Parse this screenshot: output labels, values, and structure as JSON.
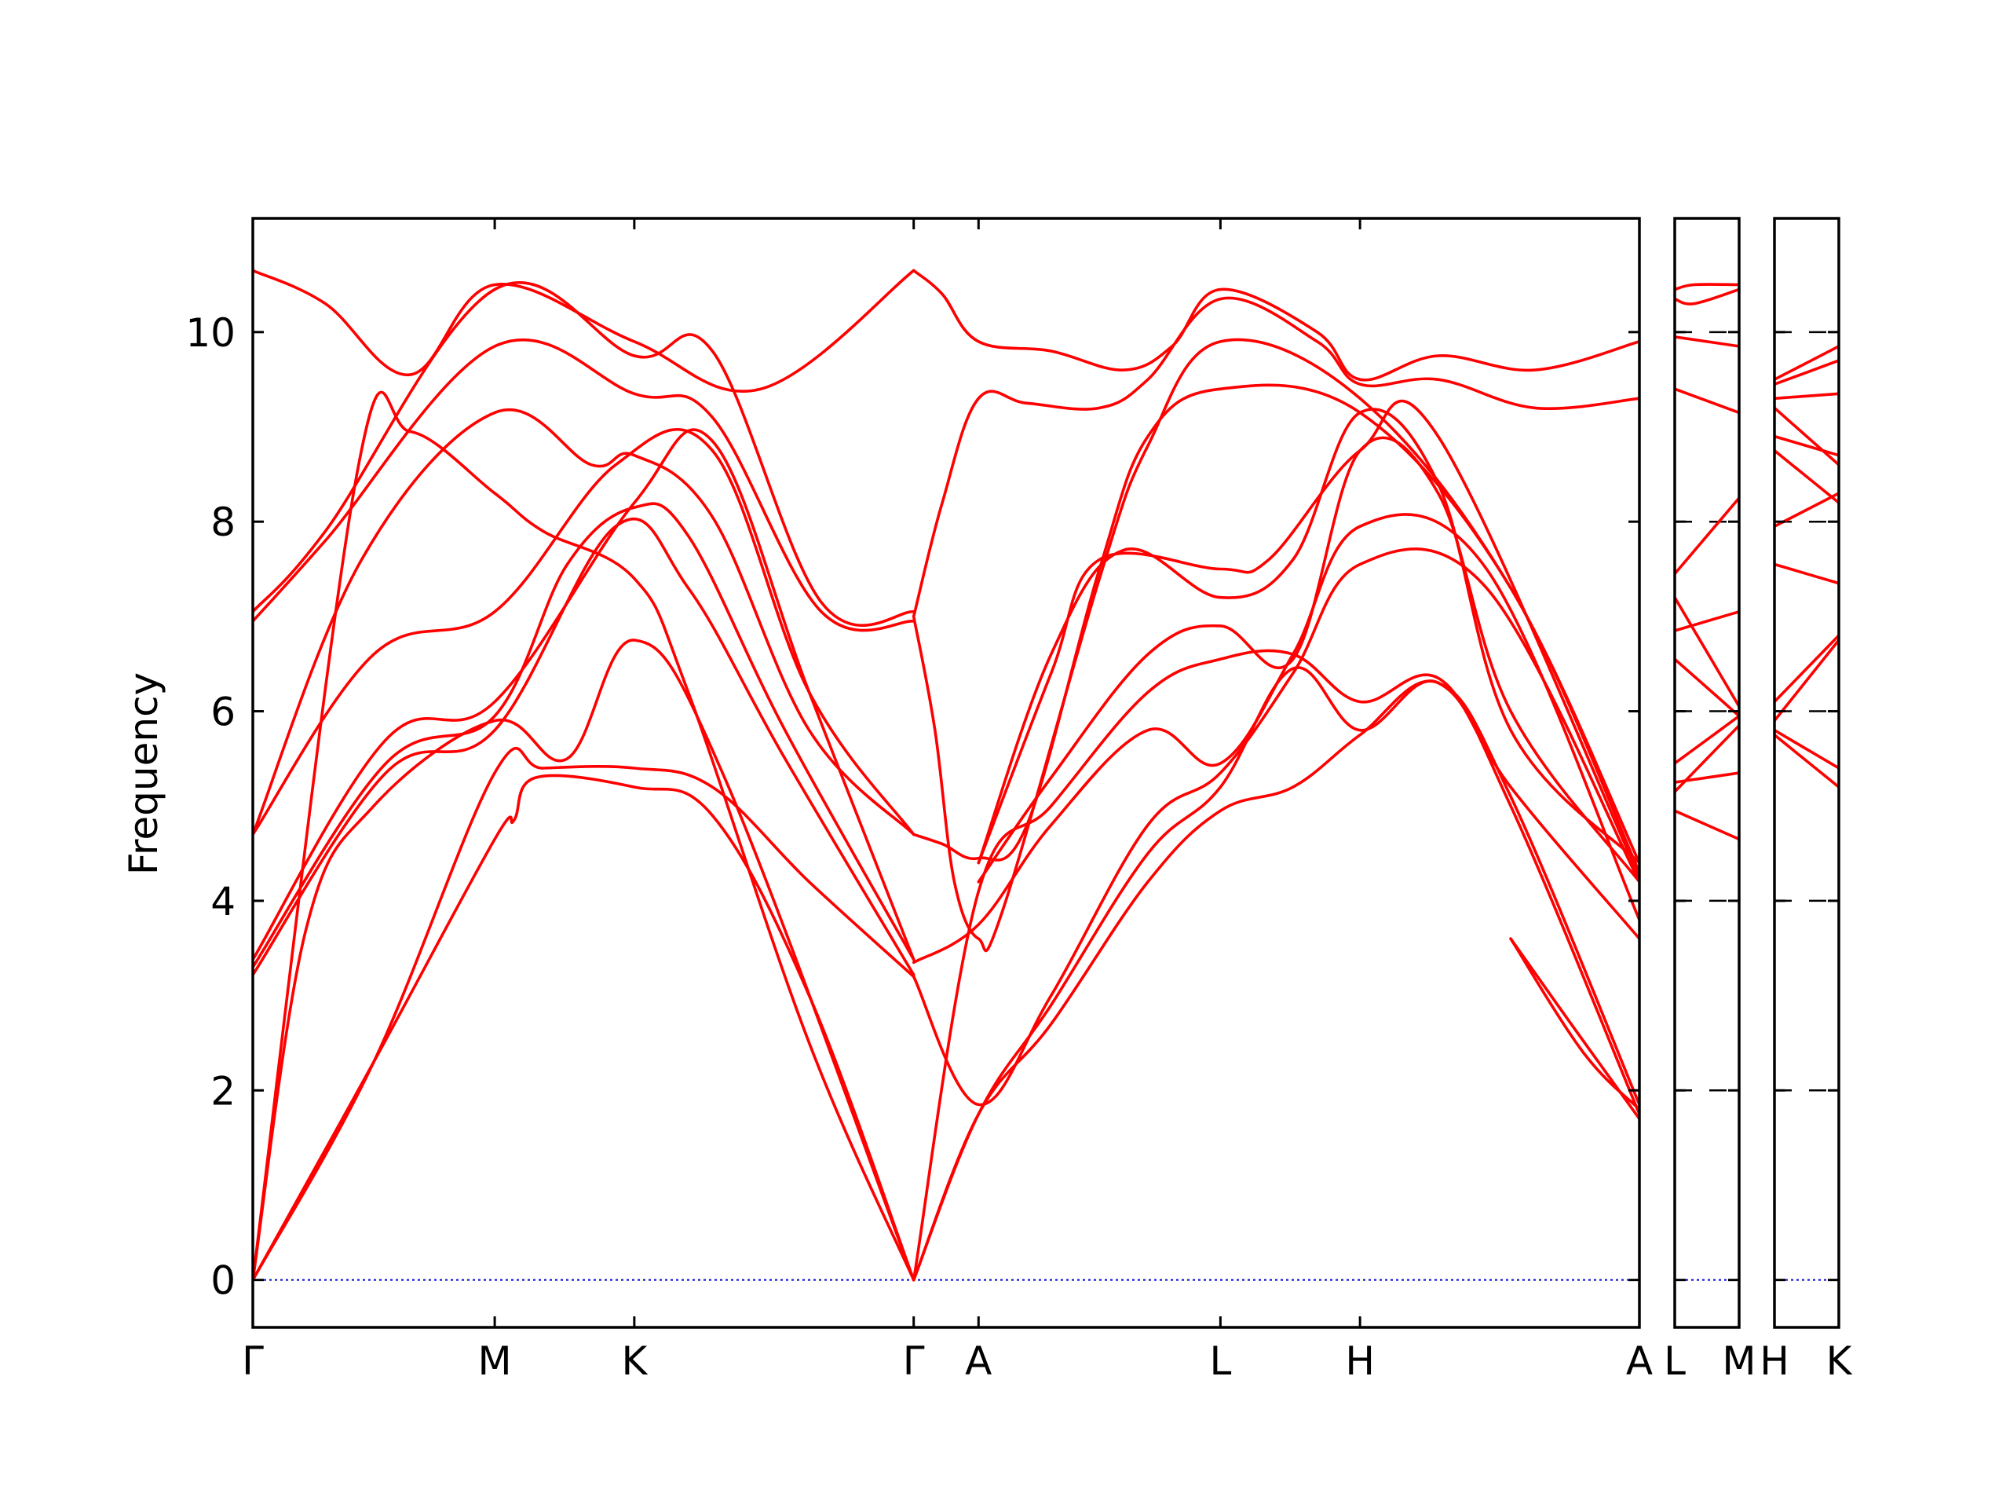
{
  "chart_data": {
    "type": "line",
    "ylabel": "Frequency",
    "ylim": [
      -0.5,
      11.2
    ],
    "yticks": [
      0,
      2,
      4,
      6,
      8,
      10
    ],
    "colors": {
      "bands": "#ff0000",
      "zero_line": "#0000cc",
      "axes": "#000000"
    },
    "segments": [
      {
        "id": "main",
        "labels": [
          "Γ",
          "M",
          "K",
          "Γ",
          "A",
          "L",
          "H",
          "A"
        ],
        "positions": [
          0,
          1,
          1.577,
          2.732,
          3.0,
          4.0,
          4.577,
          5.732
        ],
        "bands": [
          [
            [
              0,
              0
            ],
            [
              0.5,
              2.3
            ],
            [
              1,
              4.65
            ],
            [
              1.08,
              4.85
            ],
            [
              1.17,
              5.3
            ],
            [
              1.577,
              5.2
            ],
            [
              1.9,
              4.9
            ],
            [
              2.3,
              3.0
            ],
            [
              2.732,
              0
            ]
          ],
          [
            [
              0,
              0
            ],
            [
              0.5,
              2.3
            ],
            [
              1,
              5.35
            ],
            [
              1.2,
              5.4
            ],
            [
              1.577,
              5.4
            ],
            [
              1.9,
              5.2
            ],
            [
              2.3,
              4.2
            ],
            [
              2.732,
              3.2
            ]
          ],
          [
            [
              0,
              0
            ],
            [
              0.22,
              3.7
            ],
            [
              0.5,
              5.0
            ],
            [
              1,
              5.9
            ],
            [
              1.3,
              5.5
            ],
            [
              1.577,
              6.75
            ],
            [
              1.95,
              5.3
            ],
            [
              2.732,
              0
            ]
          ],
          [
            [
              0,
              0
            ],
            [
              0.43,
              8.5
            ],
            [
              0.65,
              8.95
            ],
            [
              1,
              8.3
            ],
            [
              1.2,
              7.9
            ],
            [
              1.577,
              7.4
            ],
            [
              1.8,
              6.2
            ],
            [
              2.3,
              2.5
            ],
            [
              2.732,
              0
            ]
          ],
          [
            [
              0,
              3.22
            ],
            [
              0.55,
              5.35
            ],
            [
              1,
              5.8
            ],
            [
              1.5,
              7.95
            ],
            [
              1.8,
              7.3
            ],
            [
              2.2,
              5.5
            ],
            [
              2.732,
              3.22
            ]
          ],
          [
            [
              0,
              3.3
            ],
            [
              0.55,
              5.45
            ],
            [
              1,
              5.95
            ],
            [
              1.3,
              7.55
            ],
            [
              1.577,
              8.15
            ],
            [
              1.8,
              7.85
            ],
            [
              2.2,
              5.8
            ],
            [
              2.732,
              3.38
            ]
          ],
          [
            [
              0,
              3.38
            ],
            [
              0.55,
              5.7
            ],
            [
              1,
              6.1
            ],
            [
              1.577,
              8.2
            ],
            [
              1.9,
              8.85
            ],
            [
              2.3,
              6.2
            ],
            [
              2.732,
              3.38
            ]
          ],
          [
            [
              0,
              4.7
            ],
            [
              0.5,
              6.6
            ],
            [
              1,
              7.05
            ],
            [
              1.5,
              8.6
            ],
            [
              1.9,
              8.75
            ],
            [
              2.3,
              6.2
            ],
            [
              2.732,
              4.7
            ]
          ],
          [
            [
              0,
              4.7
            ],
            [
              0.45,
              7.6
            ],
            [
              1,
              9.15
            ],
            [
              1.4,
              8.6
            ],
            [
              1.577,
              8.7
            ],
            [
              1.9,
              8.05
            ],
            [
              2.3,
              5.8
            ],
            [
              2.732,
              4.7
            ]
          ],
          [
            [
              0,
              6.95
            ],
            [
              0.3,
              7.8
            ],
            [
              1,
              9.85
            ],
            [
              1.577,
              9.35
            ],
            [
              1.9,
              9.1
            ],
            [
              2.35,
              7.05
            ],
            [
              2.732,
              6.95
            ]
          ],
          [
            [
              0,
              7.05
            ],
            [
              0.3,
              7.9
            ],
            [
              1,
              10.45
            ],
            [
              1.577,
              9.75
            ],
            [
              1.9,
              9.8
            ],
            [
              2.35,
              7.15
            ],
            [
              2.732,
              7.05
            ]
          ],
          [
            [
              0,
              10.65
            ],
            [
              0.3,
              10.3
            ],
            [
              0.65,
              9.55
            ],
            [
              1,
              10.5
            ],
            [
              1.577,
              9.9
            ],
            [
              2.1,
              9.4
            ],
            [
              2.732,
              10.65
            ]
          ],
          [
            [
              2.732,
              10.65
            ],
            [
              2.85,
              10.4
            ],
            [
              3.0,
              9.9
            ],
            [
              3.3,
              9.8
            ],
            [
              3.6,
              9.6
            ],
            [
              3.8,
              9.85
            ],
            [
              4.0,
              10.45
            ],
            [
              4.4,
              10.0
            ],
            [
              4.577,
              9.5
            ],
            [
              4.9,
              9.75
            ],
            [
              5.3,
              9.6
            ],
            [
              5.732,
              9.9
            ]
          ],
          [
            [
              2.732,
              7.0
            ],
            [
              2.85,
              8.2
            ],
            [
              3.0,
              9.3
            ],
            [
              3.2,
              9.25
            ],
            [
              3.5,
              9.2
            ],
            [
              3.7,
              9.5
            ],
            [
              4.0,
              10.35
            ],
            [
              4.4,
              9.9
            ],
            [
              4.577,
              9.45
            ],
            [
              4.9,
              9.5
            ],
            [
              5.3,
              9.2
            ],
            [
              5.732,
              9.3
            ]
          ],
          [
            [
              2.732,
              7.0
            ],
            [
              2.82,
              5.8
            ],
            [
              2.9,
              4.2
            ],
            [
              3.0,
              3.6
            ],
            [
              3.1,
              3.9
            ],
            [
              3.5,
              7.4
            ],
            [
              3.7,
              8.8
            ],
            [
              4.0,
              9.9
            ],
            [
              4.577,
              9.3
            ],
            [
              5.2,
              7.3
            ],
            [
              5.732,
              4.4
            ]
          ],
          [
            [
              2.732,
              4.7
            ],
            [
              2.85,
              4.6
            ],
            [
              3.0,
              4.45
            ],
            [
              3.2,
              4.8
            ],
            [
              3.5,
              7.5
            ],
            [
              3.7,
              8.9
            ],
            [
              4.0,
              9.4
            ],
            [
              4.577,
              9.15
            ],
            [
              5.2,
              7.3
            ],
            [
              5.732,
              4.3
            ]
          ],
          [
            [
              2.732,
              3.2
            ],
            [
              3.0,
              1.85
            ],
            [
              3.3,
              3.0
            ],
            [
              3.7,
              4.8
            ],
            [
              4.0,
              5.35
            ],
            [
              4.3,
              6.4
            ],
            [
              4.577,
              7.55
            ],
            [
              5.1,
              7.3
            ],
            [
              5.732,
              4.2
            ]
          ],
          [
            [
              2.732,
              3.35
            ],
            [
              3.0,
              3.75
            ],
            [
              3.3,
              4.8
            ],
            [
              3.7,
              5.8
            ],
            [
              4.0,
              5.45
            ],
            [
              4.3,
              6.6
            ],
            [
              4.577,
              7.95
            ],
            [
              5.1,
              7.5
            ],
            [
              5.732,
              3.8
            ]
          ],
          [
            [
              2.732,
              0
            ],
            [
              3.0,
              1.75
            ],
            [
              3.3,
              2.9
            ],
            [
              3.7,
              4.5
            ],
            [
              4.0,
              5.2
            ],
            [
              4.3,
              6.45
            ],
            [
              4.577,
              5.8
            ],
            [
              4.9,
              6.3
            ],
            [
              5.2,
              5.0
            ],
            [
              5.732,
              1.75
            ]
          ],
          [
            [
              2.732,
              0
            ],
            [
              3.0,
              1.75
            ],
            [
              3.3,
              2.7
            ],
            [
              3.7,
              4.2
            ],
            [
              4.0,
              4.95
            ],
            [
              4.3,
              5.2
            ],
            [
              4.577,
              5.75
            ],
            [
              4.9,
              6.3
            ],
            [
              5.2,
              5.1
            ],
            [
              5.732,
              1.85
            ]
          ],
          [
            [
              2.732,
              0
            ],
            [
              3.0,
              4.1
            ],
            [
              3.3,
              5.0
            ],
            [
              3.7,
              6.2
            ],
            [
              4.0,
              6.55
            ],
            [
              4.3,
              6.6
            ],
            [
              4.577,
              6.1
            ],
            [
              4.9,
              6.35
            ],
            [
              5.2,
              5.2
            ],
            [
              5.732,
              3.6
            ]
          ],
          [
            [
              3.0,
              4.2
            ],
            [
              3.3,
              5.3
            ],
            [
              3.7,
              6.6
            ],
            [
              4.0,
              6.9
            ],
            [
              4.3,
              6.55
            ],
            [
              4.577,
              8.75
            ],
            [
              4.9,
              8.3
            ],
            [
              5.2,
              6.0
            ],
            [
              5.732,
              4.2
            ]
          ],
          [
            [
              3.0,
              4.4
            ],
            [
              3.3,
              6.4
            ],
            [
              3.5,
              7.6
            ],
            [
              4.0,
              7.5
            ],
            [
              4.2,
              7.6
            ],
            [
              4.577,
              8.75
            ],
            [
              4.9,
              8.9
            ],
            [
              5.732,
              4.25
            ]
          ],
          [
            [
              3.0,
              4.4
            ],
            [
              3.3,
              6.6
            ],
            [
              3.6,
              7.7
            ],
            [
              4.0,
              7.2
            ],
            [
              4.3,
              7.6
            ],
            [
              4.577,
              9.15
            ],
            [
              4.9,
              8.4
            ],
            [
              5.2,
              5.8
            ],
            [
              5.732,
              4.4
            ]
          ],
          [
            [
              5.2,
              3.6
            ],
            [
              5.45,
              2.7
            ],
            [
              5.732,
              1.7
            ]
          ],
          [
            [
              5.2,
              3.6
            ],
            [
              5.5,
              2.4
            ],
            [
              5.732,
              1.8
            ]
          ]
        ]
      },
      {
        "id": "LM",
        "labels": [
          "L",
          "M"
        ],
        "positions": [
          0,
          1
        ],
        "bands": [
          [
            [
              0,
              10.45
            ],
            [
              0.3,
              10.5
            ],
            [
              1,
              10.5
            ]
          ],
          [
            [
              0,
              10.35
            ],
            [
              0.3,
              10.3
            ],
            [
              1,
              10.45
            ]
          ],
          [
            [
              0,
              9.95
            ],
            [
              1,
              9.85
            ]
          ],
          [
            [
              0,
              9.4
            ],
            [
              1,
              9.15
            ]
          ],
          [
            [
              0,
              7.45
            ],
            [
              1,
              8.25
            ]
          ],
          [
            [
              0,
              7.2
            ],
            [
              1,
              6.05
            ]
          ],
          [
            [
              0,
              6.85
            ],
            [
              1,
              7.05
            ]
          ],
          [
            [
              0,
              6.55
            ],
            [
              1,
              5.95
            ]
          ],
          [
            [
              0,
              5.45
            ],
            [
              1,
              5.95
            ]
          ],
          [
            [
              0,
              5.25
            ],
            [
              1,
              5.35
            ]
          ],
          [
            [
              0,
              5.15
            ],
            [
              1,
              5.85
            ]
          ],
          [
            [
              0,
              4.95
            ],
            [
              1,
              4.65
            ]
          ]
        ]
      },
      {
        "id": "HK",
        "labels": [
          "H",
          "K"
        ],
        "positions": [
          0,
          1
        ],
        "bands": [
          [
            [
              0,
              9.5
            ],
            [
              1,
              9.85
            ]
          ],
          [
            [
              0,
              9.45
            ],
            [
              1,
              9.7
            ]
          ],
          [
            [
              0,
              9.3
            ],
            [
              1,
              9.35
            ]
          ],
          [
            [
              0,
              9.2
            ],
            [
              1,
              8.6
            ]
          ],
          [
            [
              0,
              8.9
            ],
            [
              1,
              8.7
            ]
          ],
          [
            [
              0,
              8.75
            ],
            [
              1,
              8.2
            ]
          ],
          [
            [
              0,
              7.95
            ],
            [
              1,
              8.3
            ]
          ],
          [
            [
              0,
              7.55
            ],
            [
              1,
              7.35
            ]
          ],
          [
            [
              0,
              6.1
            ],
            [
              1,
              6.8
            ]
          ],
          [
            [
              0,
              5.9
            ],
            [
              1,
              6.75
            ]
          ],
          [
            [
              0,
              5.8
            ],
            [
              1,
              5.4
            ]
          ],
          [
            [
              0,
              5.75
            ],
            [
              1,
              5.2
            ]
          ]
        ]
      }
    ]
  }
}
